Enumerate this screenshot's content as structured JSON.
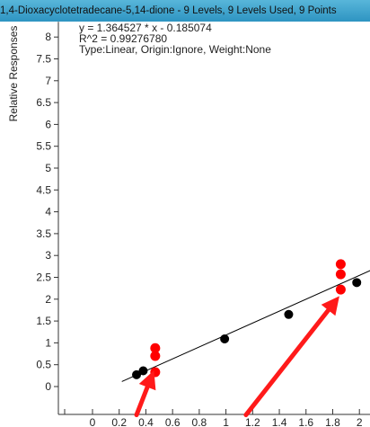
{
  "header": {
    "title": "1,4-Dioxacyclotetradecane-5,14-dione - 9 Levels, 9 Levels Used, 9 Points",
    "colors": {
      "top": "#58b6da",
      "bottom": "#2e94c2"
    }
  },
  "chart_data": {
    "type": "scatter",
    "title": "",
    "xlabel": "",
    "ylabel": "Relative Responses",
    "xlim": [
      -0.2,
      2.1
    ],
    "ylim": [
      -0.6,
      8.35
    ],
    "x_ticks": [
      0,
      0.2,
      0.4,
      0.6,
      0.8,
      1,
      1.2,
      1.4,
      1.6,
      1.8,
      2
    ],
    "x_tick_labels": [
      "0",
      "0.2",
      "0.4",
      "0.6",
      "0.8",
      "1",
      "1.2",
      "1.4",
      "1.6",
      "1.8",
      "2"
    ],
    "y_ticks": [
      0,
      0.5,
      1,
      1.5,
      2,
      2.5,
      3,
      3.5,
      4,
      4.5,
      5,
      5.5,
      6,
      6.5,
      7,
      7.5,
      8
    ],
    "y_tick_labels": [
      "0",
      "0.5",
      "1",
      "1.5",
      "2",
      "2.5",
      "3",
      "3.5",
      "4",
      "4.5",
      "5",
      "5.5",
      "6",
      "6.5",
      "7",
      "7.5",
      "8"
    ],
    "annotations": [
      "y = 1.364527 * x  - 0.185074",
      "R^2 = 0.99276780",
      "Type:Linear, Origin:Ignore, Weight:None"
    ],
    "fit": {
      "slope": 1.364527,
      "intercept": -0.185074,
      "x_start": 0.22,
      "x_end": 2.1
    },
    "series": [
      {
        "color": "#000000",
        "points": [
          {
            "x": 0.33,
            "y": 0.27
          },
          {
            "x": 0.38,
            "y": 0.36
          },
          {
            "x": 0.99,
            "y": 1.09
          },
          {
            "x": 1.47,
            "y": 1.65
          },
          {
            "x": 1.98,
            "y": 2.38
          }
        ]
      },
      {
        "color": "#ff0000",
        "points": [
          {
            "x": 0.47,
            "y": 0.33
          },
          {
            "x": 0.47,
            "y": 0.7
          },
          {
            "x": 0.47,
            "y": 0.88
          },
          {
            "x": 1.86,
            "y": 2.22
          },
          {
            "x": 1.86,
            "y": 2.57
          },
          {
            "x": 1.86,
            "y": 2.8
          }
        ]
      }
    ],
    "arrows": [
      {
        "color": "#ff1a1a",
        "from": {
          "x": 0.33,
          "y": -0.65
        },
        "to": {
          "x": 0.46,
          "y": 0.37
        }
      },
      {
        "color": "#ff1a1a",
        "from": {
          "x": 1.15,
          "y": -0.65
        },
        "to": {
          "x": 1.85,
          "y": 2.07
        }
      }
    ]
  }
}
